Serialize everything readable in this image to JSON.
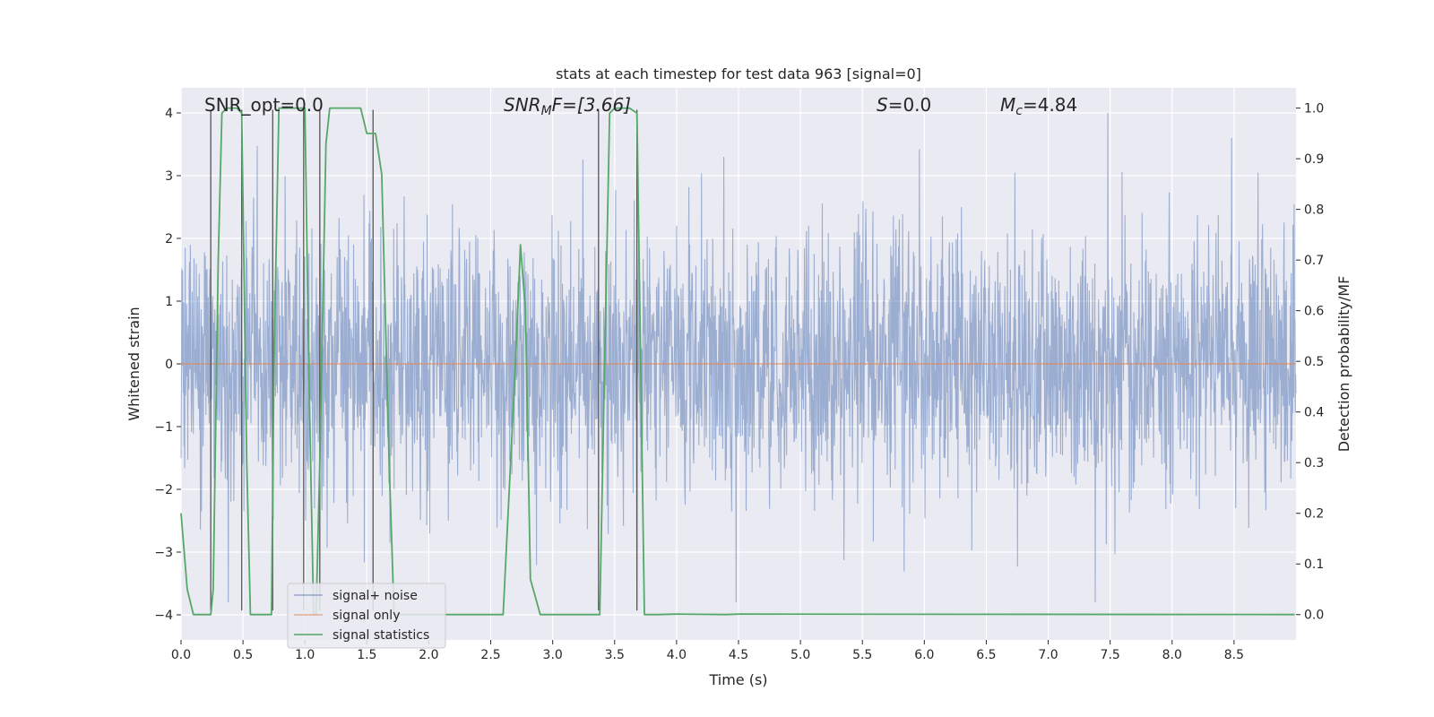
{
  "chart_data": {
    "type": "line",
    "title": "stats at each timestep for test data 963 [signal=0]",
    "xlabel": "Time (s)",
    "ylabel": "Whitened strain",
    "ylabel_right": "Detection probability/MF",
    "xlim": [
      0,
      9.0
    ],
    "ylim": [
      -4.4,
      4.4
    ],
    "ylim_right": [
      -0.05,
      1.04
    ],
    "x_ticks": [
      0.0,
      0.5,
      1.0,
      1.5,
      2.0,
      2.5,
      3.0,
      3.5,
      4.0,
      4.5,
      5.0,
      5.5,
      6.0,
      6.5,
      7.0,
      7.5,
      8.0,
      8.5
    ],
    "x_tick_labels": [
      "0.0",
      "0.5",
      "1.0",
      "1.5",
      "2.0",
      "2.5",
      "3.0",
      "3.5",
      "4.0",
      "4.5",
      "5.0",
      "5.5",
      "6.0",
      "6.5",
      "7.0",
      "7.5",
      "8.0",
      "8.5"
    ],
    "y_ticks": [
      -4,
      -3,
      -2,
      -1,
      0,
      1,
      2,
      3,
      4
    ],
    "y_tick_labels": [
      "−4",
      "−3",
      "−2",
      "−1",
      "0",
      "1",
      "2",
      "3",
      "4"
    ],
    "y_right_ticks": [
      0.0,
      0.1,
      0.2,
      0.3,
      0.4,
      0.5,
      0.6,
      0.7,
      0.8,
      0.9,
      1.0
    ],
    "y_right_tick_labels": [
      "0.0",
      "0.1",
      "0.2",
      "0.3",
      "0.4",
      "0.5",
      "0.6",
      "0.7",
      "0.8",
      "0.9",
      "1.0"
    ],
    "grid": true,
    "legend_position": "lower-left",
    "annotations": {
      "snr_opt": "SNR_opt=0.0",
      "snr_mf_symbol": "SNR",
      "snr_mf_sub": "M",
      "snr_mf_rest": "F=[3.66]",
      "s_symbol": "S",
      "s_rest": "=0.0",
      "mc_symbol": "M",
      "mc_sub": "c",
      "mc_rest": "=4.84"
    },
    "series": [
      {
        "name": "signal+ noise",
        "color": "#4c72b0",
        "description": "whitened noise trace, mostly within about ±2, spikes to about ±4",
        "typical_amplitude": 1.4,
        "peak_spikes": [
          {
            "x": 7.48,
            "y": 4.0
          },
          {
            "x": 8.48,
            "y": 3.6
          },
          {
            "x": 4.38,
            "y": 3.3
          },
          {
            "x": 7.38,
            "y": -3.8
          },
          {
            "x": 3.68,
            "y": -3.8
          },
          {
            "x": 0.38,
            "y": -3.8
          },
          {
            "x": 4.48,
            "y": -3.8
          }
        ]
      },
      {
        "name": "signal only",
        "color": "#dd8452",
        "x": [
          0.0,
          9.0
        ],
        "y": [
          0.0,
          0.0
        ]
      },
      {
        "name": "signal statistics",
        "color": "#55a868",
        "axis": "right",
        "x": [
          0.0,
          0.05,
          0.1,
          0.24,
          0.26,
          0.3,
          0.33,
          0.37,
          0.45,
          0.49,
          0.53,
          0.56,
          0.62,
          0.73,
          0.75,
          0.79,
          0.82,
          0.88,
          1.0,
          1.03,
          1.07,
          1.09,
          1.12,
          1.17,
          1.2,
          1.25,
          1.45,
          1.5,
          1.57,
          1.62,
          1.68,
          1.72,
          1.8,
          2.6,
          2.7,
          2.74,
          2.78,
          2.82,
          2.9,
          3.38,
          3.42,
          3.46,
          3.5,
          3.62,
          3.68,
          3.74,
          3.85,
          4.0,
          4.4,
          4.5,
          8.99
        ],
        "y": [
          0.2,
          0.05,
          0.0,
          0.0,
          0.05,
          0.7,
          0.99,
          1.0,
          1.0,
          0.99,
          0.3,
          0.0,
          0.0,
          0.0,
          0.5,
          1.0,
          1.0,
          1.0,
          1.0,
          0.5,
          0.0,
          0.0,
          0.3,
          0.93,
          1.0,
          1.0,
          1.0,
          0.95,
          0.95,
          0.87,
          0.3,
          0.0,
          0.0,
          0.0,
          0.5,
          0.73,
          0.6,
          0.07,
          0.0,
          0.0,
          0.5,
          0.99,
          1.0,
          1.0,
          0.99,
          0.0,
          0.0,
          0.001,
          0.0,
          0.001,
          0.0
        ]
      }
    ],
    "vertical_lines": [
      {
        "x": 0.24,
        "ymin": -3.93,
        "ymax": 4.05
      },
      {
        "x": 0.49,
        "ymin": -3.93,
        "ymax": 4.05
      },
      {
        "x": 0.74,
        "ymin": -3.93,
        "ymax": 4.05
      },
      {
        "x": 0.99,
        "ymin": -3.93,
        "ymax": 4.05
      },
      {
        "x": 1.12,
        "ymin": -3.93,
        "ymax": 4.05
      },
      {
        "x": 1.55,
        "ymin": -3.93,
        "ymax": 4.05
      },
      {
        "x": 3.37,
        "ymin": -3.93,
        "ymax": 4.05
      },
      {
        "x": 3.68,
        "ymin": -3.93,
        "ymax": 4.05
      }
    ]
  }
}
